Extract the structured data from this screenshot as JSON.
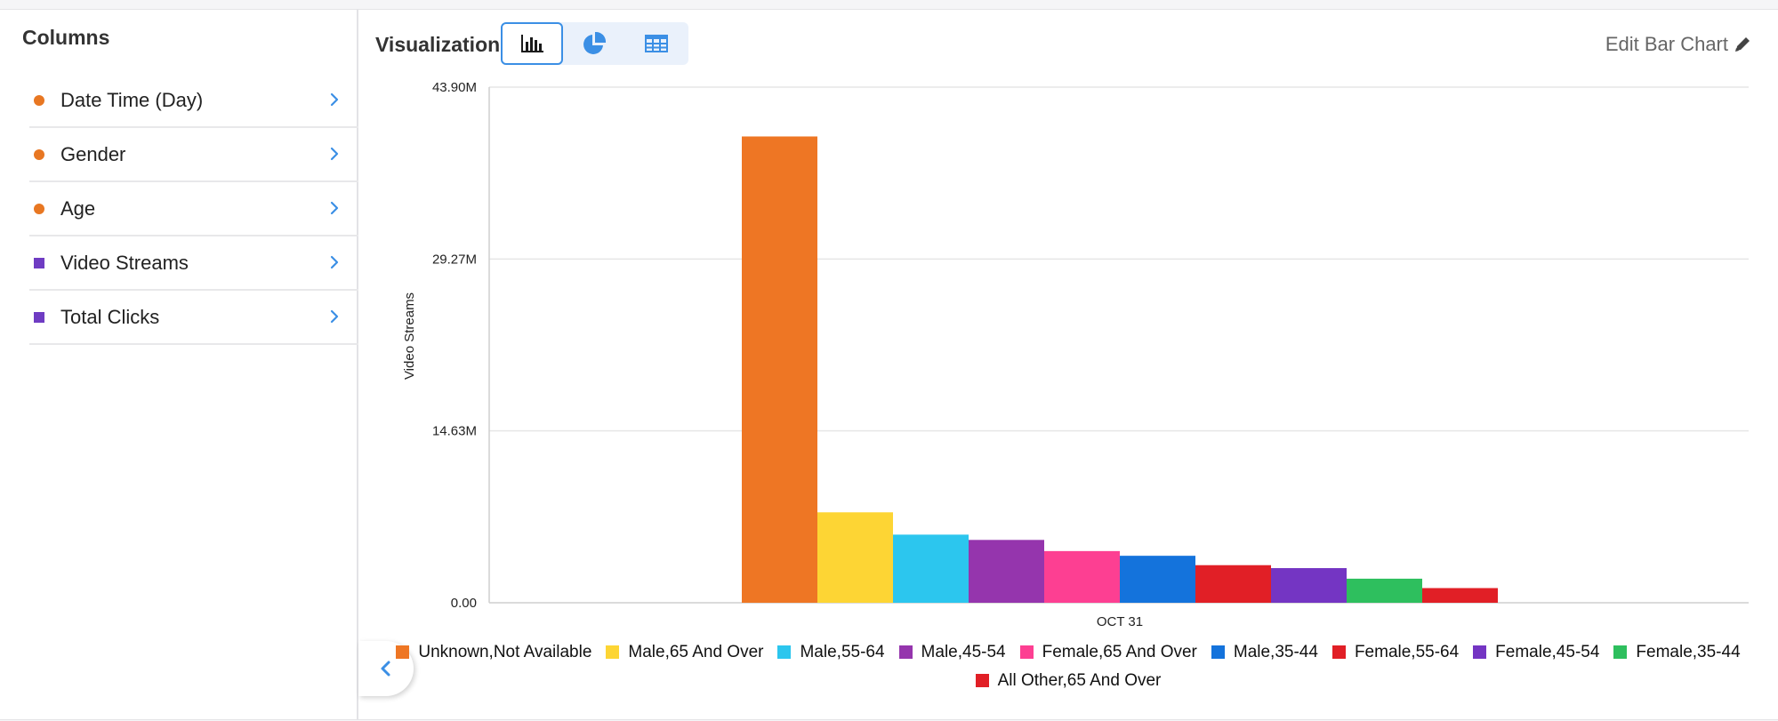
{
  "sidebar": {
    "title": "Columns",
    "items": [
      {
        "label": "Date Time (Day)",
        "marker": "circle",
        "color": "#e87722"
      },
      {
        "label": "Gender",
        "marker": "circle",
        "color": "#e87722"
      },
      {
        "label": "Age",
        "marker": "circle",
        "color": "#e87722"
      },
      {
        "label": "Video Streams",
        "marker": "square",
        "color": "#6f3cc3"
      },
      {
        "label": "Total Clicks",
        "marker": "square",
        "color": "#6f3cc3"
      }
    ]
  },
  "visualization": {
    "title": "Visualization",
    "modes": [
      {
        "icon": "bar-chart-icon",
        "active": true
      },
      {
        "icon": "pie-chart-icon",
        "active": false
      },
      {
        "icon": "table-icon",
        "active": false
      }
    ],
    "edit_label": "Edit Bar Chart",
    "edit_icon": "pencil-icon"
  },
  "collapse_icon": "chevron-left-icon",
  "accent_color": "#3b8fe5",
  "chart_data": {
    "type": "bar",
    "categories": [
      "OCT 31"
    ],
    "ylabel": "Video Streams",
    "ylim": [
      0,
      43.9
    ],
    "yticks": [
      "0.00",
      "14.63M",
      "29.27M",
      "43.90M"
    ],
    "grid": true,
    "legend_position": "bottom",
    "series": [
      {
        "name": "Unknown,Not Available",
        "color": "#ee7624",
        "values": [
          39.7
        ]
      },
      {
        "name": "Male,65 And Over",
        "color": "#fdd534",
        "values": [
          7.7
        ]
      },
      {
        "name": "Male,55-64",
        "color": "#2cc6ee",
        "values": [
          5.8
        ]
      },
      {
        "name": "Male,45-54",
        "color": "#9535ad",
        "values": [
          5.35
        ]
      },
      {
        "name": "Female,65 And Over",
        "color": "#fd3f92",
        "values": [
          4.4
        ]
      },
      {
        "name": "Male,35-44",
        "color": "#1473dc",
        "values": [
          4.0
        ]
      },
      {
        "name": "Female,55-64",
        "color": "#e11f26",
        "values": [
          3.2
        ]
      },
      {
        "name": "Female,45-54",
        "color": "#7435c3",
        "values": [
          2.95
        ]
      },
      {
        "name": "Female,35-44",
        "color": "#2ebf5e",
        "values": [
          2.05
        ]
      },
      {
        "name": "All Other,65 And Over",
        "color": "#e11f26",
        "values": [
          1.25
        ]
      }
    ]
  }
}
